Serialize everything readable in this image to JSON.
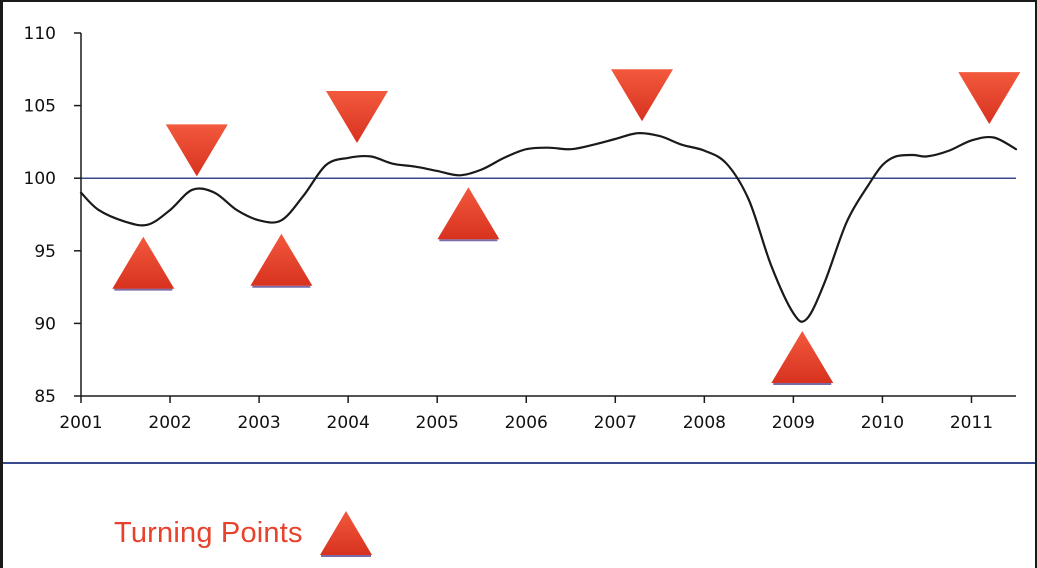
{
  "chart_data": {
    "type": "line",
    "x_ticks": [
      "2001",
      "2002",
      "2003",
      "2004",
      "2005",
      "2006",
      "2007",
      "2008",
      "2009",
      "2010",
      "2011"
    ],
    "y_ticks": [
      "85",
      "90",
      "95",
      "100",
      "105",
      "110"
    ],
    "xlim": [
      2001,
      2011.5
    ],
    "ylim": [
      85,
      110
    ],
    "reference_line": 100,
    "grid": false,
    "series": [
      {
        "x": [
          2001.0,
          2001.2,
          2001.5,
          2001.75,
          2002.0,
          2002.25,
          2002.5,
          2002.75,
          2003.0,
          2003.25,
          2003.5,
          2003.75,
          2004.0,
          2004.25,
          2004.5,
          2004.75,
          2005.0,
          2005.25,
          2005.5,
          2005.75,
          2006.0,
          2006.25,
          2006.5,
          2006.75,
          2007.0,
          2007.25,
          2007.5,
          2007.75,
          2008.0,
          2008.25,
          2008.5,
          2008.75,
          2009.0,
          2009.15,
          2009.35,
          2009.6,
          2009.85,
          2010.0,
          2010.15,
          2010.35,
          2010.5,
          2010.75,
          2011.0,
          2011.25,
          2011.5
        ],
        "y": [
          99.0,
          97.8,
          97.0,
          96.8,
          97.8,
          99.2,
          99.0,
          97.8,
          97.1,
          97.1,
          98.8,
          100.9,
          101.4,
          101.5,
          101.0,
          100.8,
          100.5,
          100.2,
          100.6,
          101.4,
          102.0,
          102.1,
          102.0,
          102.3,
          102.7,
          103.1,
          102.9,
          102.3,
          101.9,
          101.0,
          98.5,
          94.0,
          90.7,
          90.3,
          92.8,
          97.0,
          99.6,
          100.9,
          101.5,
          101.6,
          101.5,
          101.9,
          102.6,
          102.8,
          102.0
        ],
        "color": "#1a1a1a"
      }
    ],
    "turning_points": [
      {
        "x": 2001.7,
        "y": 96.8,
        "kind": "trough"
      },
      {
        "x": 2002.3,
        "y": 99.3,
        "kind": "peak"
      },
      {
        "x": 2003.25,
        "y": 97.0,
        "kind": "trough"
      },
      {
        "x": 2004.1,
        "y": 101.6,
        "kind": "peak"
      },
      {
        "x": 2005.35,
        "y": 100.2,
        "kind": "trough"
      },
      {
        "x": 2007.3,
        "y": 103.1,
        "kind": "peak"
      },
      {
        "x": 2009.1,
        "y": 90.3,
        "kind": "trough"
      },
      {
        "x": 2011.2,
        "y": 102.9,
        "kind": "peak"
      }
    ],
    "legend": {
      "label": "Turning Points",
      "position": "bottom-left"
    },
    "colors": {
      "marker": "#e8412c",
      "axis": "#1a1a1a",
      "reference_line": "#3a4a8c",
      "legend_text": "#e8412c"
    }
  }
}
